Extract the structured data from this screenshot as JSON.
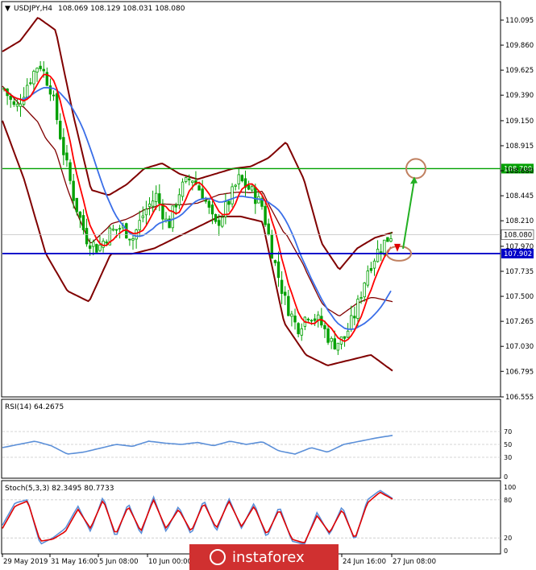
{
  "header": {
    "symbol": "USDJPY,H4",
    "ohlc": "108.069 108.129 108.031 108.080"
  },
  "rsi_label": "RSI(14) 64.2675",
  "stoch_label": "Stoch(5,3,3) 82.3495 80.7733",
  "watermark": "instaforex",
  "colors": {
    "candle": "#00a000",
    "bollinger": "#800000",
    "fast_ma": "#ff0000",
    "slow_ma": "#3a6ee8",
    "green_level": "#00a000",
    "blue_level": "#0000c8",
    "arrow": "#22b022",
    "circle": "#c08060",
    "rsi_line": "#5b8fd8",
    "stoch_main": "#5b8fd8",
    "stoch_signal": "#e00000",
    "watermark_bg": "#d03030"
  },
  "chart_data": [
    {
      "type": "candlestick",
      "title": "USDJPY,H4",
      "ylim": [
        106.555,
        110.2
      ],
      "y_ticks": [
        "110.095",
        "109.860",
        "109.625",
        "109.390",
        "109.150",
        "108.915",
        "108.680",
        "108.445",
        "108.210",
        "107.970",
        "107.735",
        "107.500",
        "107.265",
        "107.030",
        "106.795",
        "106.555"
      ],
      "x_ticks": [
        "29 May 2019",
        "31 May 16:00",
        "5 Jun 08:00",
        "10 Jun 00:00",
        "24 Jun 16:00",
        "27 Jun 08:00"
      ],
      "levels": [
        {
          "value": 108.7,
          "label": "108.700",
          "color": "#00a000"
        },
        {
          "value": 107.902,
          "label": "107.902",
          "color": "#0000c8"
        }
      ],
      "current_price": {
        "value": 108.08,
        "label": "108.080"
      },
      "price_path": [
        109.45,
        109.25,
        109.5,
        109.7,
        109.45,
        108.9,
        108.4,
        108.05,
        107.95,
        108.1,
        108.15,
        108.05,
        108.3,
        108.45,
        108.15,
        108.5,
        108.62,
        108.45,
        108.15,
        108.35,
        108.6,
        108.5,
        108.35,
        107.85,
        107.45,
        107.2,
        107.35,
        107.25,
        107.05,
        107.1,
        107.35,
        107.75,
        107.95,
        108.08
      ],
      "bollinger_upper": [
        109.8,
        109.9,
        110.12,
        110.0,
        109.2,
        108.5,
        108.45,
        108.55,
        108.7,
        108.75,
        108.65,
        108.6,
        108.65,
        108.7,
        108.72,
        108.8,
        108.95,
        108.6,
        108.0,
        107.75,
        107.95,
        108.05,
        108.1
      ],
      "bollinger_lower": [
        109.15,
        108.6,
        107.9,
        107.55,
        107.45,
        107.9,
        107.9,
        107.95,
        108.05,
        108.15,
        108.25,
        108.25,
        108.2,
        107.25,
        106.95,
        106.85,
        106.9,
        106.95,
        106.8
      ]
    },
    {
      "type": "line",
      "title": "RSI(14)",
      "ylim": [
        0,
        100
      ],
      "y_ticks": [
        "70",
        "50",
        "30",
        "0"
      ],
      "series": [
        {
          "name": "RSI(14)",
          "values": [
            45,
            50,
            55,
            48,
            35,
            38,
            44,
            50,
            47,
            55,
            52,
            50,
            53,
            48,
            55,
            50,
            54,
            40,
            35,
            45,
            38,
            50,
            55,
            60,
            64
          ]
        }
      ]
    },
    {
      "type": "line",
      "title": "Stoch(5,3,3)",
      "ylim": [
        0,
        100
      ],
      "y_ticks": [
        "100",
        "80",
        "20",
        "0"
      ],
      "series": [
        {
          "name": "%K",
          "values": [
            40,
            75,
            80,
            10,
            20,
            35,
            70,
            30,
            85,
            20,
            75,
            25,
            85,
            30,
            70,
            25,
            80,
            30,
            82,
            35,
            75,
            20,
            70,
            15,
            10,
            60,
            25,
            70,
            15,
            80,
            95,
            82
          ]
        },
        {
          "name": "%D",
          "values": [
            35,
            70,
            78,
            15,
            18,
            30,
            65,
            35,
            80,
            25,
            70,
            30,
            80,
            35,
            65,
            30,
            75,
            35,
            78,
            38,
            70,
            25,
            65,
            18,
            12,
            55,
            28,
            65,
            18,
            75,
            92,
            81
          ]
        }
      ]
    }
  ]
}
